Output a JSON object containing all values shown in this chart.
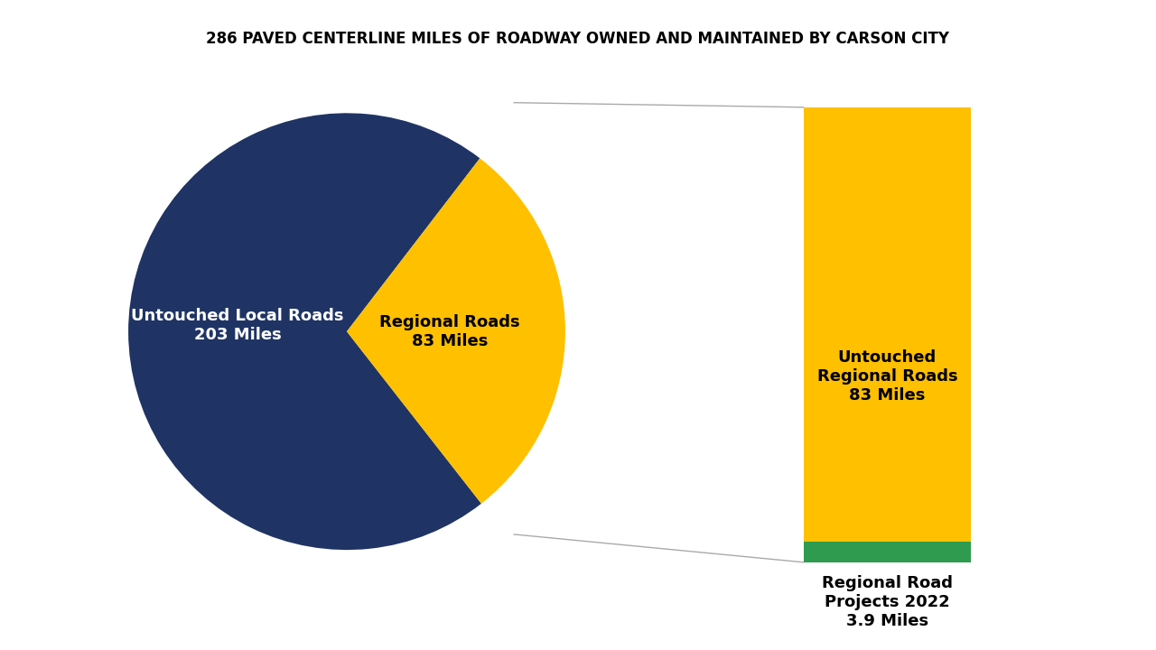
{
  "title": "286 PAVED CENTERLINE MILES OF ROADWAY OWNED AND MAINTAINED BY CARSON CITY",
  "title_fontsize": 12,
  "title_fontweight": "bold",
  "background_color": "#ffffff",
  "pie_values": [
    203,
    83
  ],
  "pie_colors": [
    "#1f3464",
    "#ffc000"
  ],
  "pie_label_local": "Untouched Local Roads\n203 Miles",
  "pie_label_regional": "Regional Roads\n83 Miles",
  "pie_label_local_color": "white",
  "pie_label_regional_color": "black",
  "pie_label_fontsize": 13,
  "bar_color_yellow": "#ffc000",
  "bar_color_green": "#2e9b4e",
  "bar_label_inside": "Untouched\nRegional Roads\n83 Miles",
  "bar_label_below": "Regional Road\nProjects 2022\n3.9 Miles",
  "bar_label_fontsize": 13,
  "connector_color": "#aaaaaa",
  "connector_linewidth": 1.0
}
